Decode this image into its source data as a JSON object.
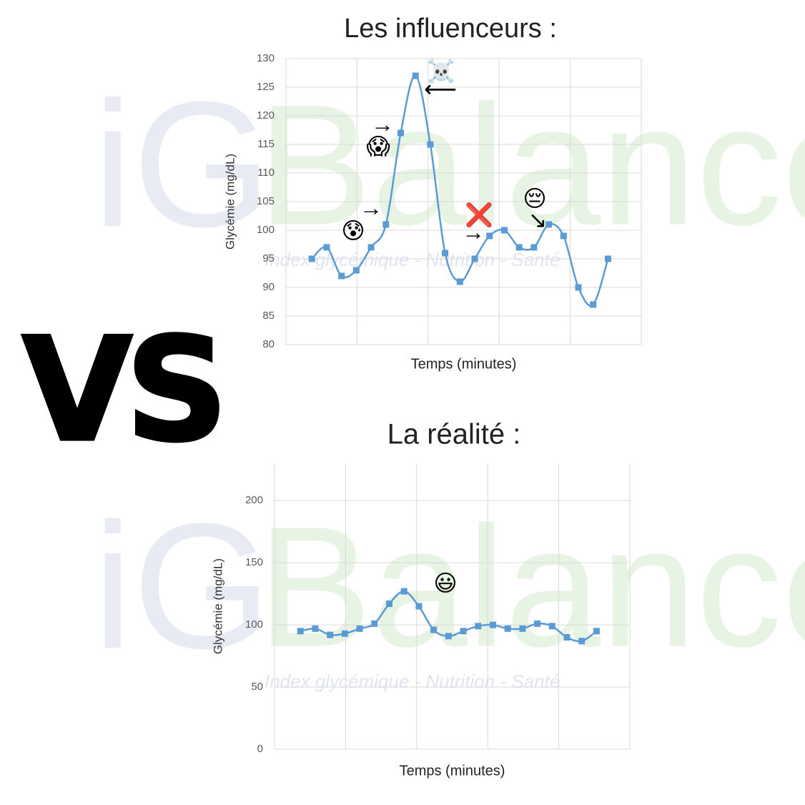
{
  "watermark": {
    "brand_left": "iG",
    "brand_right": "Balance",
    "tagline": "Index glycémique - Nutrition - Santé"
  },
  "vs": "VS",
  "chart_data": [
    {
      "type": "line",
      "title": "Les influenceurs :",
      "x_label": "Temps (minutes)",
      "y_label": "Glycémie (mg/dL)",
      "categories": [
        null,
        null,
        null,
        null,
        null,
        null,
        null,
        null,
        null,
        null,
        null,
        null,
        null,
        null,
        null,
        null,
        null,
        null,
        null,
        null,
        null
      ],
      "series": [
        {
          "name": "Glycémie",
          "color": "#5b9bd5",
          "values": [
            95,
            97,
            92,
            93,
            97,
            101,
            117,
            127,
            115,
            96,
            91,
            95,
            99,
            100,
            97,
            97,
            101,
            99,
            90,
            87,
            95
          ]
        }
      ],
      "ylim": [
        80,
        130
      ],
      "yticks": [
        80,
        85,
        90,
        95,
        100,
        105,
        110,
        115,
        120,
        125,
        130
      ],
      "grid": true,
      "annotations": [
        "😰",
        "→",
        "😱",
        "→",
        "☠️",
        "⟵",
        "❌",
        "→",
        "😔",
        "↘"
      ]
    },
    {
      "type": "line",
      "title": "La réalité :",
      "x_label": "Temps (minutes)",
      "y_label": "Glycémie (mg/dL)",
      "categories": [
        null,
        null,
        null,
        null,
        null,
        null,
        null,
        null,
        null,
        null,
        null,
        null,
        null,
        null,
        null,
        null,
        null,
        null,
        null,
        null,
        null
      ],
      "series": [
        {
          "name": "Glycémie",
          "color": "#5b9bd5",
          "values": [
            95,
            97,
            92,
            93,
            97,
            101,
            117,
            127,
            115,
            96,
            91,
            95,
            99,
            100,
            97,
            97,
            101,
            99,
            90,
            87,
            95
          ]
        }
      ],
      "ylim": [
        0,
        230
      ],
      "yticks": [
        0,
        50,
        100,
        150,
        200
      ],
      "grid": true,
      "annotations": [
        "😃"
      ]
    }
  ]
}
